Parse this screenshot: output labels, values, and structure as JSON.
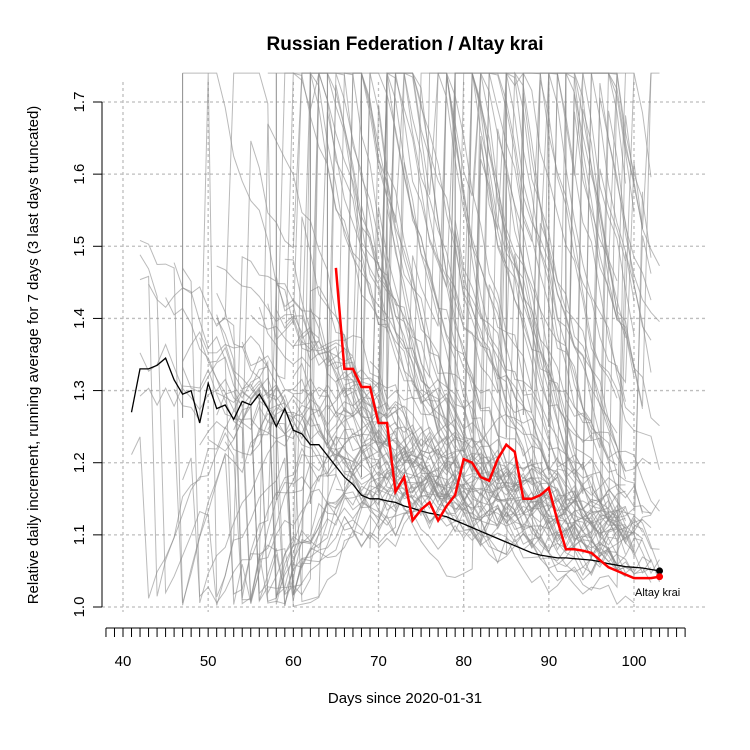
{
  "chart_data": {
    "type": "line",
    "title": "Russian Federation / Altay krai",
    "xlabel": "Days since 2020-01-31",
    "ylabel": "Relative daily increment, running average for 7 days (3 last days truncated)",
    "xlim": [
      40,
      103
    ],
    "ylim": [
      1.0,
      1.7
    ],
    "x_ticks": [
      40,
      50,
      60,
      70,
      80,
      90,
      100
    ],
    "y_ticks": [
      1.0,
      1.1,
      1.2,
      1.3,
      1.4,
      1.5,
      1.6,
      1.7
    ],
    "grid": true,
    "annotation": "Altay krai",
    "colors": {
      "highlight": "#ff0000",
      "national": "#000000",
      "regions": "#8c8c8c",
      "grid": "#bebebe"
    },
    "series": [
      {
        "name": "Altay krai",
        "role": "highlight",
        "x": [
          65,
          66,
          67,
          68,
          69,
          70,
          71,
          72,
          73,
          74,
          75,
          76,
          77,
          78,
          79,
          80,
          81,
          82,
          83,
          84,
          85,
          86,
          87,
          88,
          89,
          90,
          91,
          92,
          93,
          94,
          95,
          96,
          97,
          98,
          99,
          100,
          101,
          102,
          103
        ],
        "y": [
          1.47,
          1.33,
          1.33,
          1.305,
          1.305,
          1.255,
          1.255,
          1.16,
          1.18,
          1.12,
          1.135,
          1.145,
          1.12,
          1.14,
          1.155,
          1.205,
          1.2,
          1.18,
          1.175,
          1.205,
          1.225,
          1.215,
          1.15,
          1.15,
          1.155,
          1.165,
          1.12,
          1.08,
          1.08,
          1.078,
          1.075,
          1.065,
          1.055,
          1.05,
          1.045,
          1.04,
          1.04,
          1.04,
          1.042
        ]
      },
      {
        "role": "national",
        "x": [
          41,
          42,
          43,
          44,
          45,
          46,
          47,
          48,
          49,
          50,
          51,
          52,
          53,
          54,
          55,
          56,
          57,
          58,
          59,
          60,
          61,
          62,
          63,
          64,
          65,
          66,
          67,
          68,
          69,
          70,
          71,
          72,
          73,
          74,
          75,
          76,
          77,
          78,
          79,
          80,
          81,
          82,
          83,
          84,
          85,
          86,
          87,
          88,
          89,
          90,
          91,
          92,
          93,
          94,
          95,
          96,
          97,
          98,
          99,
          100,
          101,
          102,
          103
        ],
        "y": [
          1.27,
          1.33,
          1.33,
          1.335,
          1.345,
          1.315,
          1.295,
          1.3,
          1.255,
          1.31,
          1.275,
          1.28,
          1.26,
          1.285,
          1.28,
          1.295,
          1.275,
          1.25,
          1.275,
          1.245,
          1.24,
          1.225,
          1.225,
          1.21,
          1.195,
          1.18,
          1.17,
          1.155,
          1.15,
          1.15,
          1.147,
          1.145,
          1.14,
          1.137,
          1.133,
          1.13,
          1.128,
          1.125,
          1.12,
          1.115,
          1.11,
          1.105,
          1.1,
          1.095,
          1.09,
          1.085,
          1.08,
          1.075,
          1.072,
          1.07,
          1.068,
          1.068,
          1.067,
          1.066,
          1.065,
          1.063,
          1.06,
          1.058,
          1.056,
          1.055,
          1.054,
          1.052,
          1.05
        ]
      }
    ]
  }
}
